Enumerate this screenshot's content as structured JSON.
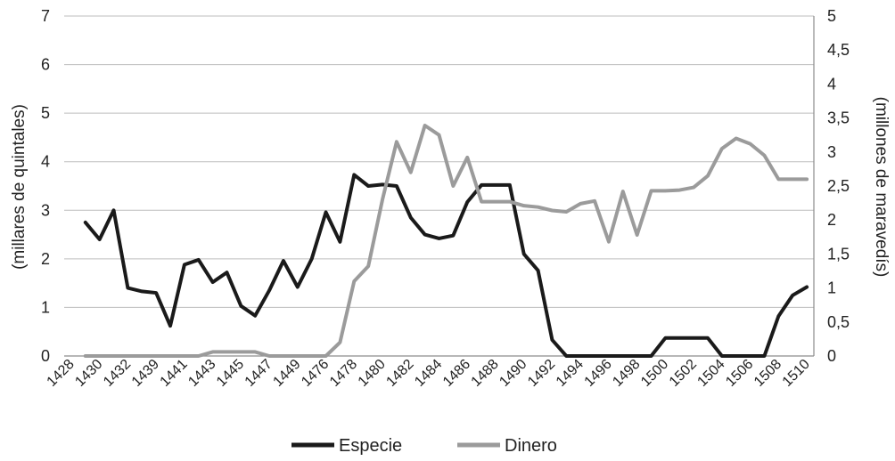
{
  "chart_data": {
    "type": "line",
    "title": "",
    "ylabel_left": "(millares de quintales)",
    "ylabel_right": "(millones de maravedís)",
    "x_tick_labels": [
      "1428",
      "1430",
      "1432",
      "1439",
      "1441",
      "1443",
      "1445",
      "1447",
      "1449",
      "1476",
      "1478",
      "1480",
      "1482",
      "1484",
      "1486",
      "1488",
      "1490",
      "1492",
      "1494",
      "1496",
      "1498",
      "1500",
      "1502",
      "1504",
      "1506",
      "1508",
      "1510"
    ],
    "x": [
      "1430",
      "1431",
      "1432",
      "1433",
      "1438",
      "1439",
      "1440",
      "1441",
      "1442",
      "1443",
      "1444",
      "1445",
      "1446",
      "1447",
      "1448",
      "1449",
      "1450",
      "1476",
      "1477",
      "1478",
      "1479",
      "1480",
      "1481",
      "1482",
      "1483",
      "1484",
      "1485",
      "1486",
      "1487",
      "1488",
      "1489",
      "1490",
      "1491",
      "1492",
      "1493",
      "1494",
      "1495",
      "1496",
      "1497",
      "1498",
      "1499",
      "1500",
      "1501",
      "1502",
      "1503",
      "1504",
      "1505",
      "1506",
      "1507",
      "1508",
      "1509",
      "1510"
    ],
    "y_left_ticks": [
      "0",
      "1",
      "2",
      "3",
      "4",
      "5",
      "6",
      "7"
    ],
    "y_left_range": [
      0,
      7
    ],
    "y_right_ticks": [
      "0",
      "0,5",
      "1",
      "1,5",
      "2",
      "2,5",
      "3",
      "3,5",
      "4",
      "4,5",
      "5"
    ],
    "y_right_range": [
      0,
      5
    ],
    "grid": true,
    "legend_position": "bottom",
    "series": [
      {
        "name": "Especie",
        "axis": "left",
        "color": "#1a1a1a",
        "values": [
          2.75,
          2.4,
          3.0,
          1.4,
          1.33,
          1.3,
          0.62,
          1.88,
          1.98,
          1.52,
          1.72,
          1.03,
          0.83,
          1.35,
          1.96,
          1.42,
          2.0,
          2.96,
          2.35,
          3.73,
          3.5,
          3.53,
          3.5,
          2.85,
          2.5,
          2.42,
          2.48,
          3.17,
          3.52,
          3.52,
          3.52,
          2.1,
          1.76,
          0.33,
          0,
          0,
          0,
          0,
          0,
          0,
          0,
          0.37,
          0.37,
          0.37,
          0.37,
          0,
          0,
          0,
          0,
          0.82,
          1.25,
          1.42
        ]
      },
      {
        "name": "Dinero",
        "axis": "right",
        "color": "#9b9b9b",
        "values": [
          0,
          0,
          0,
          0,
          0,
          0,
          0,
          0,
          0,
          0.06,
          0.06,
          0.06,
          0.06,
          0,
          0,
          0,
          0,
          0,
          0.2,
          1.1,
          1.32,
          2.3,
          3.15,
          2.7,
          3.39,
          3.25,
          2.5,
          2.92,
          2.27,
          2.27,
          2.27,
          2.21,
          2.19,
          2.14,
          2.12,
          2.24,
          2.28,
          1.68,
          2.42,
          1.78,
          2.43,
          2.43,
          2.44,
          2.48,
          2.65,
          3.05,
          3.2,
          3.12,
          2.95,
          2.6,
          2.6,
          2.6
        ]
      }
    ]
  }
}
